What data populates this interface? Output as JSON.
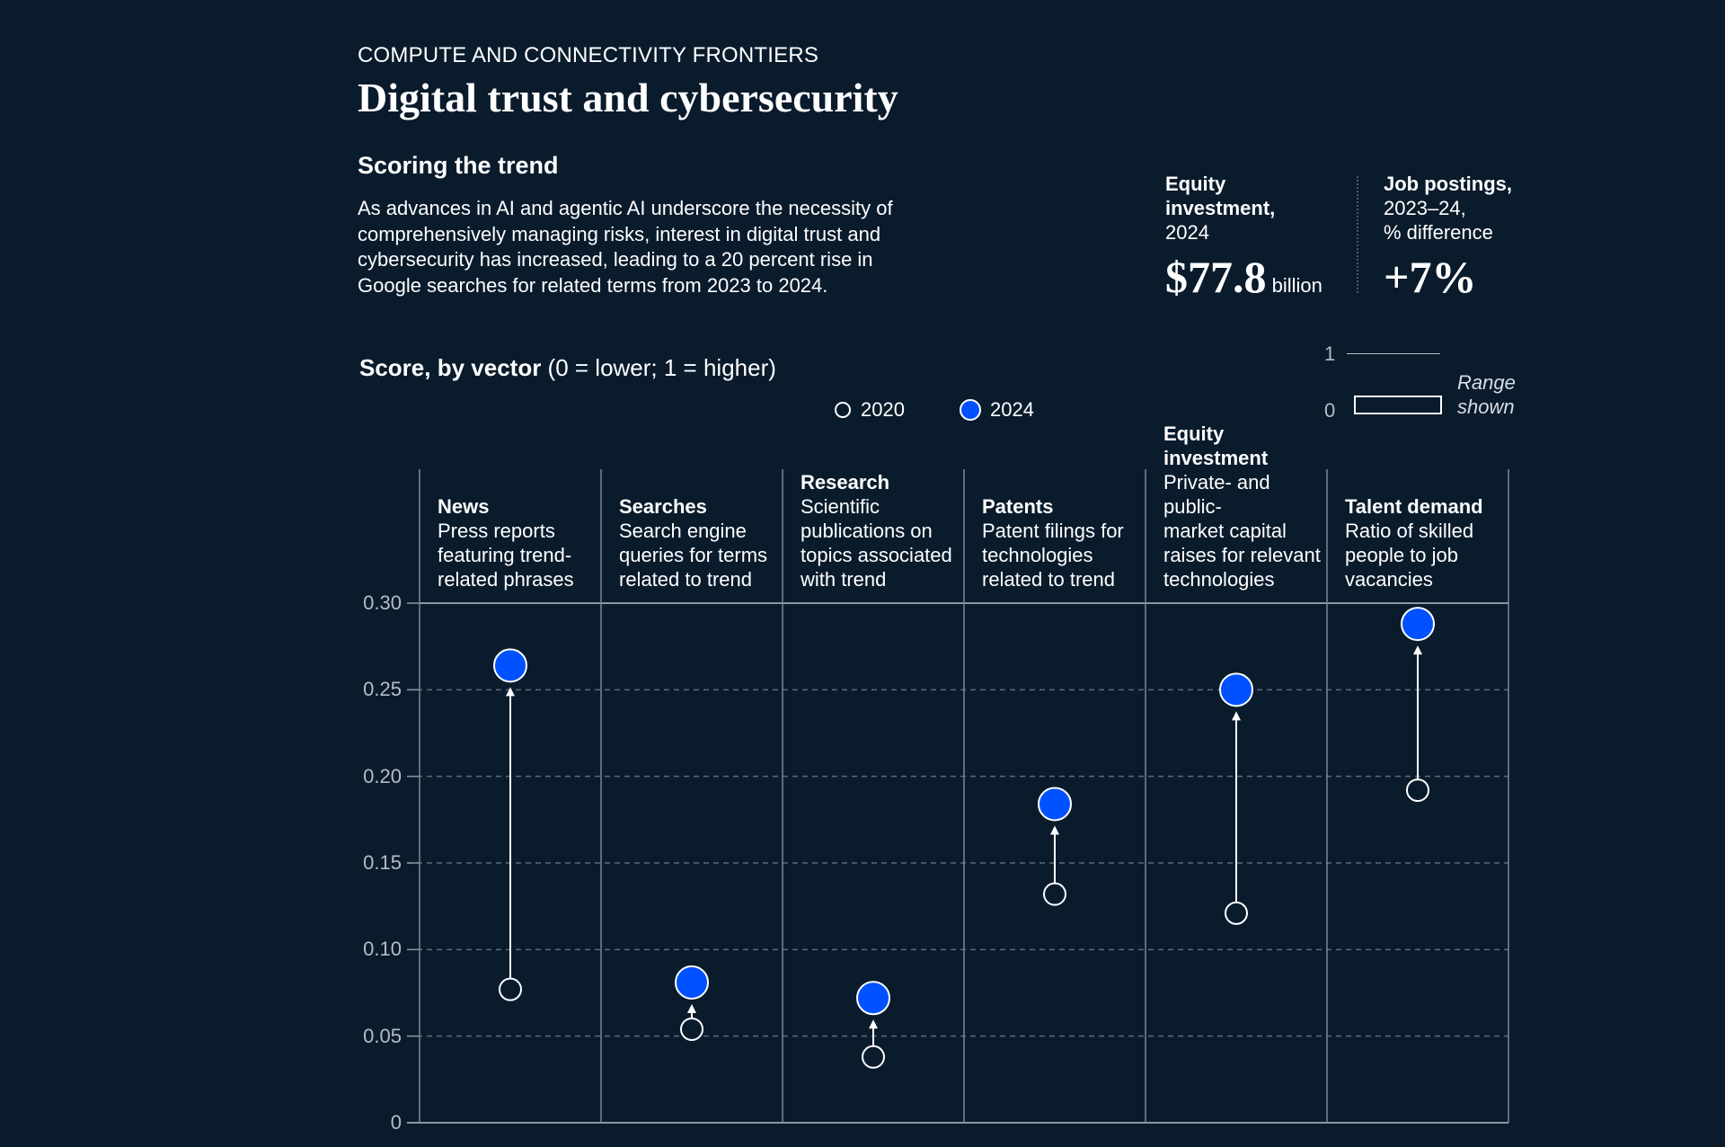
{
  "header": {
    "overline": "COMPUTE AND CONNECTIVITY FRONTIERS",
    "title": "Digital trust and cybersecurity",
    "subhead": "Scoring the trend",
    "body_lines": [
      "As advances in AI and agentic AI underscore the necessity of",
      "comprehensively managing risks, interest in digital trust and",
      "cybersecurity has increased, leading to a 20 percent rise in",
      "Google searches for related terms from 2023 to 2024."
    ]
  },
  "stats": {
    "equity": {
      "label_bold": [
        "Equity",
        "investment,"
      ],
      "label": "2024",
      "value": "$77.8",
      "unit": "billion"
    },
    "jobs": {
      "label_bold": "Job postings,",
      "label": [
        "2023–24,",
        "% difference"
      ],
      "value": "+7%"
    }
  },
  "range_key": {
    "top": "1",
    "bottom": "0",
    "label": [
      "Range",
      "shown"
    ]
  },
  "chart_data": {
    "type": "scatter",
    "title": "Score, by vector",
    "title_note": "(0 = lower; 1 = higher)",
    "ylim": [
      0,
      0.3
    ],
    "yticks": [
      "0",
      "0.05",
      "0.10",
      "0.15",
      "0.20",
      "0.25",
      "0.30"
    ],
    "grid": true,
    "legend": {
      "placement": "top-center",
      "entries": [
        "2020",
        "2024"
      ]
    },
    "colors": {
      "2020": "#0a1b2c",
      "2024": "#0051ff",
      "stroke": "#ffffff"
    },
    "categories": [
      {
        "name": "News",
        "desc": [
          "Press reports",
          "featuring trend-",
          "related phrases"
        ]
      },
      {
        "name": "Searches",
        "desc": [
          "Search engine",
          "queries for terms",
          "related to trend"
        ]
      },
      {
        "name": "Research",
        "desc": [
          "Scientific",
          "publications on",
          "topics associated",
          "with trend"
        ]
      },
      {
        "name": "Patents",
        "desc": [
          "Patent filings for",
          "technologies",
          "related to trend"
        ]
      },
      {
        "name": "Equity investment",
        "desc": [
          "Private- and public-",
          "market capital",
          "raises for relevant",
          "technologies"
        ]
      },
      {
        "name": "Talent demand",
        "desc": [
          "Ratio of skilled",
          "people to job",
          "vacancies"
        ]
      }
    ],
    "series": [
      {
        "name": "2020",
        "values": [
          0.077,
          0.054,
          0.038,
          0.132,
          0.121,
          0.192
        ]
      },
      {
        "name": "2024",
        "values": [
          0.264,
          0.081,
          0.072,
          0.184,
          0.25,
          0.288
        ]
      }
    ]
  }
}
